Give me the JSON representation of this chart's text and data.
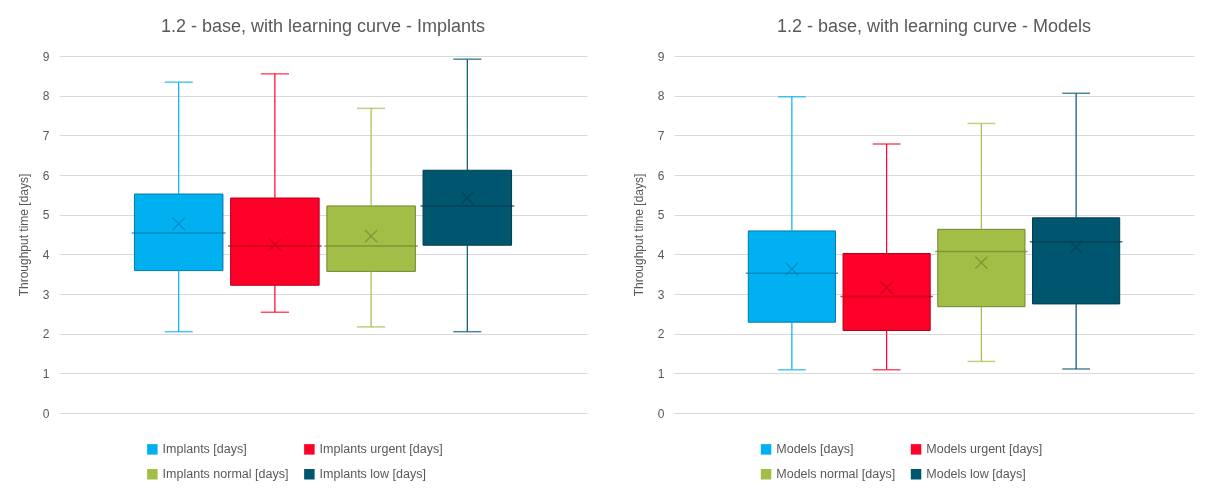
{
  "chart_data": [
    {
      "type": "box",
      "title": "1.2 - base, with learning curve - Implants",
      "ylabel": "Throughput time [days]",
      "categories": [
        null
      ],
      "ylim": [
        0,
        9
      ],
      "yticks": [
        0,
        1,
        2,
        3,
        4,
        5,
        6,
        7,
        8,
        9
      ],
      "grid": "y",
      "legend": "bottom",
      "tick_labels": "y",
      "marker": "cross",
      "series": [
        {
          "name": "Implants [days]",
          "color": "#00b0f0",
          "boxes": [
            {
              "low": 2.05,
              "q1": 3.59,
              "median": 4.54,
              "q3": 5.52,
              "high": 8.34,
              "mean": 4.77
            }
          ]
        },
        {
          "name": "Implants urgent [days]",
          "color": "#ff0029",
          "boxes": [
            {
              "low": 2.54,
              "q1": 3.22,
              "median": 4.21,
              "q3": 5.42,
              "high": 8.55,
              "mean": 4.24
            }
          ]
        },
        {
          "name": "Implants normal [days]",
          "color": "#a3be47",
          "boxes": [
            {
              "low": 2.17,
              "q1": 3.57,
              "median": 4.21,
              "q3": 5.22,
              "high": 7.68,
              "mean": 4.46
            }
          ]
        },
        {
          "name": "Implants low [days]",
          "color": "#00556f",
          "boxes": [
            {
              "low": 2.05,
              "q1": 4.23,
              "median": 5.22,
              "q3": 6.12,
              "high": 8.92,
              "mean": 5.42
            }
          ]
        }
      ]
    },
    {
      "type": "box",
      "title": "1.2 - base, with learning curve - Models",
      "ylabel": "Throughput time [days]",
      "categories": [
        null
      ],
      "ylim": [
        0,
        9
      ],
      "yticks": [
        0,
        1,
        2,
        3,
        4,
        5,
        6,
        7,
        8,
        9
      ],
      "grid": "y",
      "legend": "bottom",
      "tick_labels": "y",
      "marker": "cross",
      "series": [
        {
          "name": "Models [days]",
          "color": "#00b0f0",
          "boxes": [
            {
              "low": 1.09,
              "q1": 2.29,
              "median": 3.52,
              "q3": 4.59,
              "high": 7.97,
              "mean": 3.63
            }
          ]
        },
        {
          "name": "Models urgent [days]",
          "color": "#ff0029",
          "boxes": [
            {
              "low": 1.09,
              "q1": 2.08,
              "median": 2.94,
              "q3": 4.02,
              "high": 6.78,
              "mean": 3.16
            }
          ]
        },
        {
          "name": "Models normal [days]",
          "color": "#a3be47",
          "boxes": [
            {
              "low": 1.3,
              "q1": 2.68,
              "median": 4.07,
              "q3": 4.63,
              "high": 7.3,
              "mean": 3.79
            }
          ]
        },
        {
          "name": "Models low [days]",
          "color": "#00556f",
          "boxes": [
            {
              "low": 1.11,
              "q1": 2.75,
              "median": 4.32,
              "q3": 4.92,
              "high": 8.06,
              "mean": 4.18
            }
          ]
        }
      ]
    }
  ]
}
